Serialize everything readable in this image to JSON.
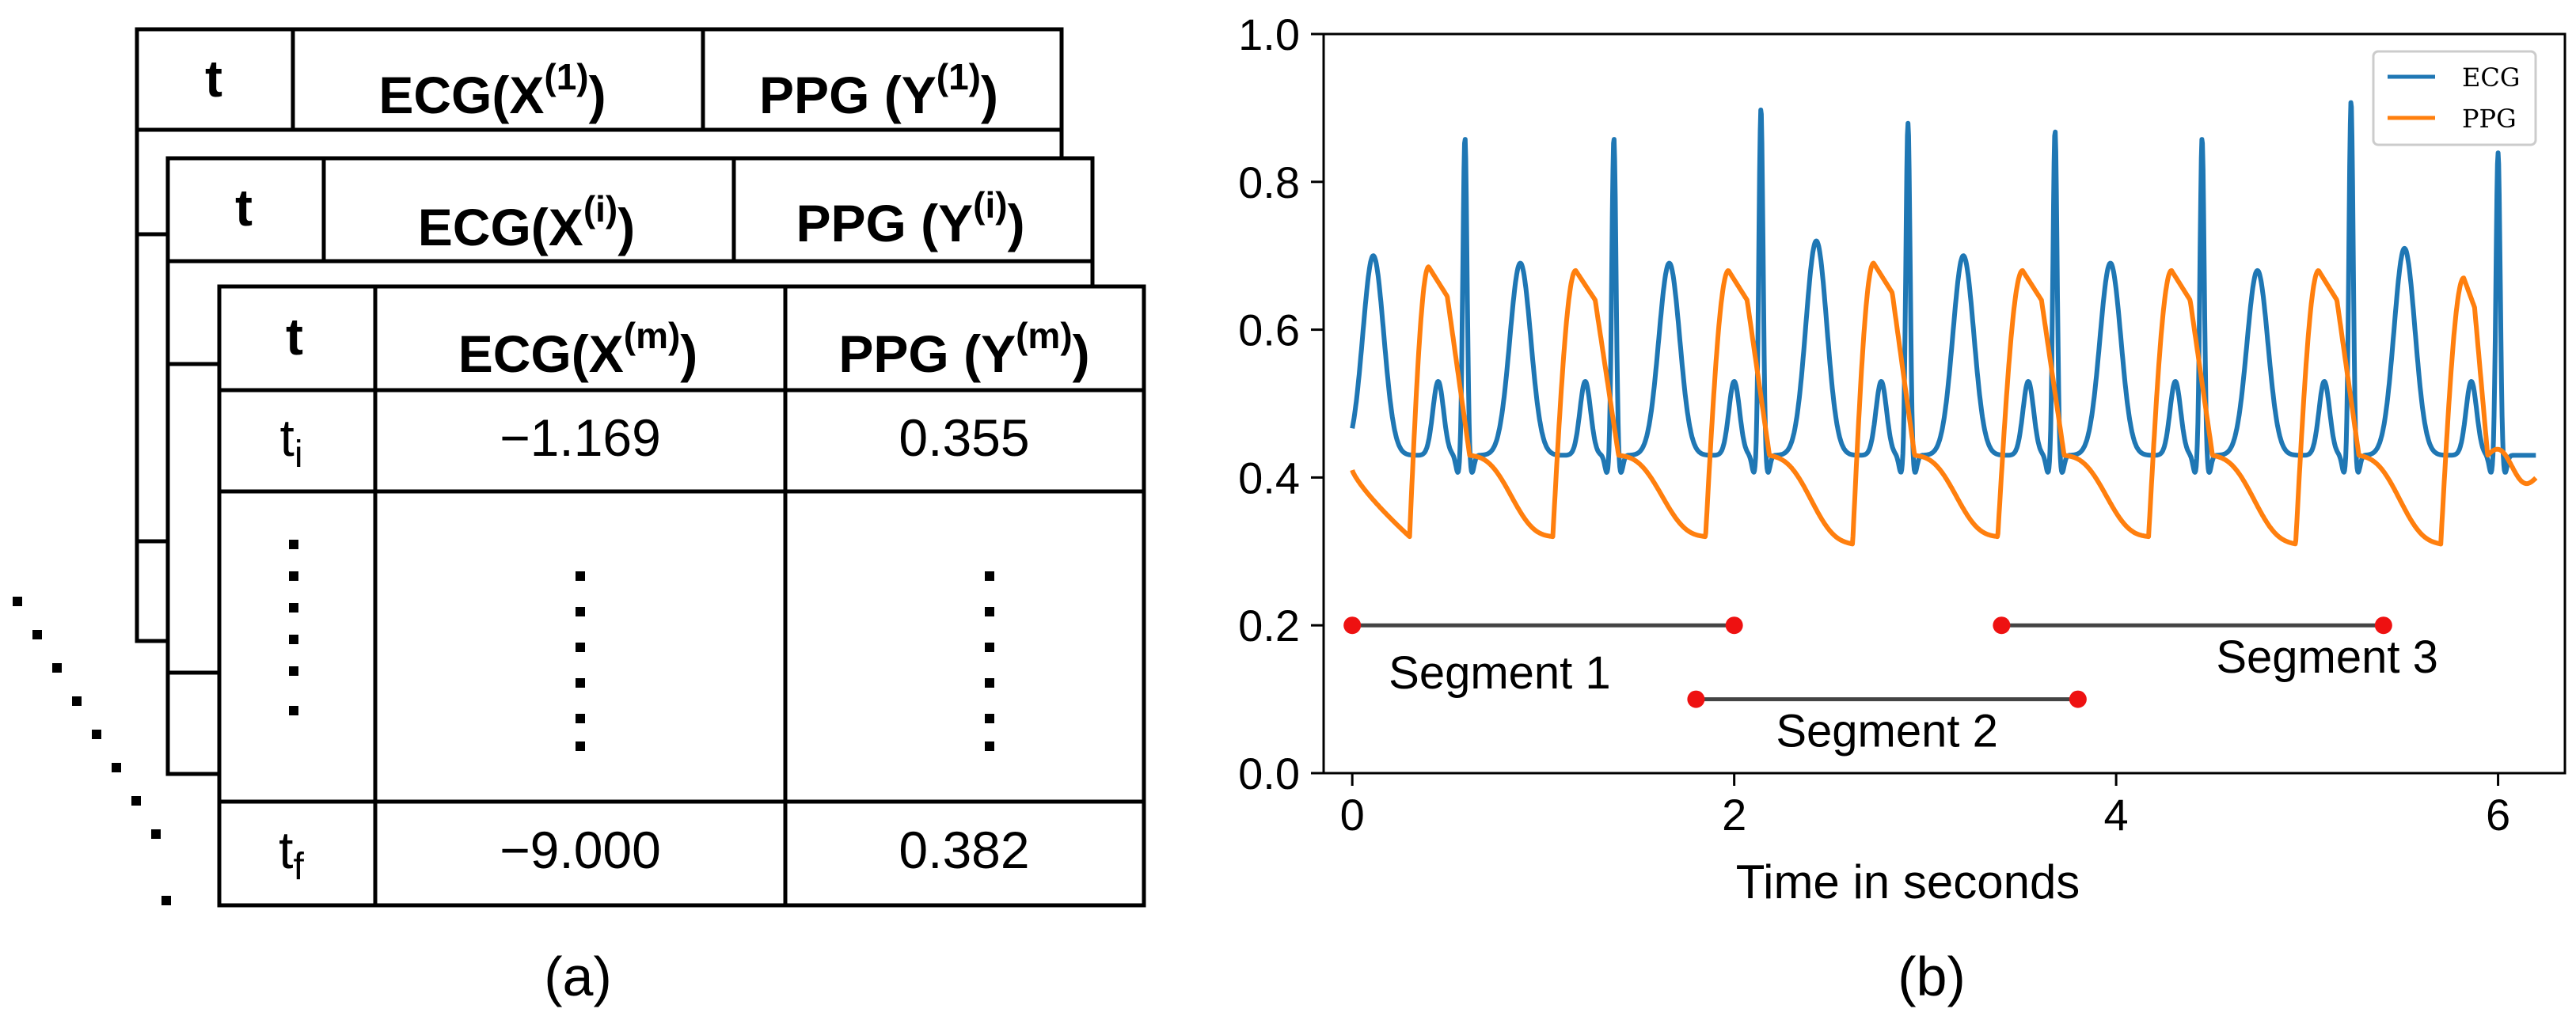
{
  "panel_a": {
    "caption": "(a)",
    "tables": [
      {
        "headers": {
          "t": "t",
          "ecg_prefix": "ECG(X",
          "ecg_sup": "(1)",
          "ecg_suffix": ")",
          "ppg_prefix": "PPG (Y",
          "ppg_sup": "(1)",
          "ppg_suffix": ")"
        }
      },
      {
        "headers": {
          "t": "t",
          "ecg_prefix": "ECG(X",
          "ecg_sup": "(i)",
          "ecg_suffix": ")",
          "ppg_prefix": "PPG (Y",
          "ppg_sup": "(i)",
          "ppg_suffix": ")"
        }
      },
      {
        "headers": {
          "t": "t",
          "ecg_prefix": "ECG(X",
          "ecg_sup": "(m)",
          "ecg_suffix": ")",
          "ppg_prefix": "PPG (Y",
          "ppg_sup": "(m)",
          "ppg_suffix": ")"
        },
        "rows": [
          {
            "t_base": "t",
            "t_sub": "i",
            "ecg": "−1.169",
            "ppg": "0.355"
          },
          {
            "t_base": "t",
            "t_sub": "f",
            "ecg": "−9.000",
            "ppg": "0.382"
          }
        ]
      }
    ]
  },
  "chart_data": {
    "type": "line",
    "caption": "(b)",
    "title": "",
    "xlabel": "Time in seconds",
    "ylabel": "",
    "xlim": [
      -0.15,
      6.35
    ],
    "ylim": [
      0.0,
      1.0
    ],
    "x_ticks": [
      0,
      2,
      4,
      6
    ],
    "y_ticks": [
      "0.0",
      "0.2",
      "0.4",
      "0.6",
      "0.8",
      "1.0"
    ],
    "legend_position": "top-right",
    "series": [
      {
        "name": "ECG",
        "color": "#1f77b4",
        "baseline": 0.43,
        "r_peaks": [
          {
            "t": 0.59,
            "v": 0.86
          },
          {
            "t": 1.37,
            "v": 0.86
          },
          {
            "t": 2.14,
            "v": 0.9
          },
          {
            "t": 2.91,
            "v": 0.88
          },
          {
            "t": 3.68,
            "v": 0.87
          },
          {
            "t": 4.45,
            "v": 0.86
          },
          {
            "t": 5.23,
            "v": 0.91
          },
          {
            "t": 6.0,
            "v": 0.84
          }
        ],
        "t_waves": [
          {
            "t": 0.11,
            "v": 0.7
          },
          {
            "t": 0.88,
            "v": 0.69
          },
          {
            "t": 1.66,
            "v": 0.69
          },
          {
            "t": 2.43,
            "v": 0.72
          },
          {
            "t": 3.2,
            "v": 0.7
          },
          {
            "t": 3.97,
            "v": 0.69
          },
          {
            "t": 4.74,
            "v": 0.68
          },
          {
            "t": 5.51,
            "v": 0.71
          }
        ],
        "p_waves": [
          {
            "t": 0.45,
            "v": 0.53
          },
          {
            "t": 1.22,
            "v": 0.53
          },
          {
            "t": 2.0,
            "v": 0.53
          },
          {
            "t": 2.77,
            "v": 0.53
          },
          {
            "t": 3.54,
            "v": 0.53
          },
          {
            "t": 4.31,
            "v": 0.53
          },
          {
            "t": 5.09,
            "v": 0.53
          },
          {
            "t": 5.86,
            "v": 0.53
          }
        ],
        "start": 0.48,
        "end": 0.47
      },
      {
        "name": "PPG",
        "color": "#ff7f0e",
        "cycles": [
          {
            "foot_t": 0.3,
            "foot_v": 0.32,
            "peak_t": 0.4,
            "peak_v": 0.685
          },
          {
            "foot_t": 1.05,
            "foot_v": 0.32,
            "peak_t": 1.17,
            "peak_v": 0.68
          },
          {
            "foot_t": 1.85,
            "foot_v": 0.32,
            "peak_t": 1.97,
            "peak_v": 0.68
          },
          {
            "foot_t": 2.62,
            "foot_v": 0.31,
            "peak_t": 2.73,
            "peak_v": 0.69
          },
          {
            "foot_t": 3.38,
            "foot_v": 0.32,
            "peak_t": 3.51,
            "peak_v": 0.68
          },
          {
            "foot_t": 4.17,
            "foot_v": 0.32,
            "peak_t": 4.29,
            "peak_v": 0.68
          },
          {
            "foot_t": 4.94,
            "foot_v": 0.31,
            "peak_t": 5.06,
            "peak_v": 0.68
          },
          {
            "foot_t": 5.7,
            "foot_v": 0.31,
            "peak_t": 5.82,
            "peak_v": 0.67
          }
        ],
        "start": 0.41,
        "end": 0.4
      }
    ],
    "segments": [
      {
        "label": "Segment 1",
        "start": 0.0,
        "end": 2.0,
        "y": 0.2,
        "label_position": "below-left"
      },
      {
        "label": "Segment 2",
        "start": 1.8,
        "end": 3.8,
        "y": 0.1,
        "label_position": "below"
      },
      {
        "label": "Segment 3",
        "start": 3.4,
        "end": 5.4,
        "y": 0.2,
        "label_position": "below-right"
      }
    ],
    "segment_line_color": "#444444",
    "segment_marker_color": "#ee1111"
  }
}
